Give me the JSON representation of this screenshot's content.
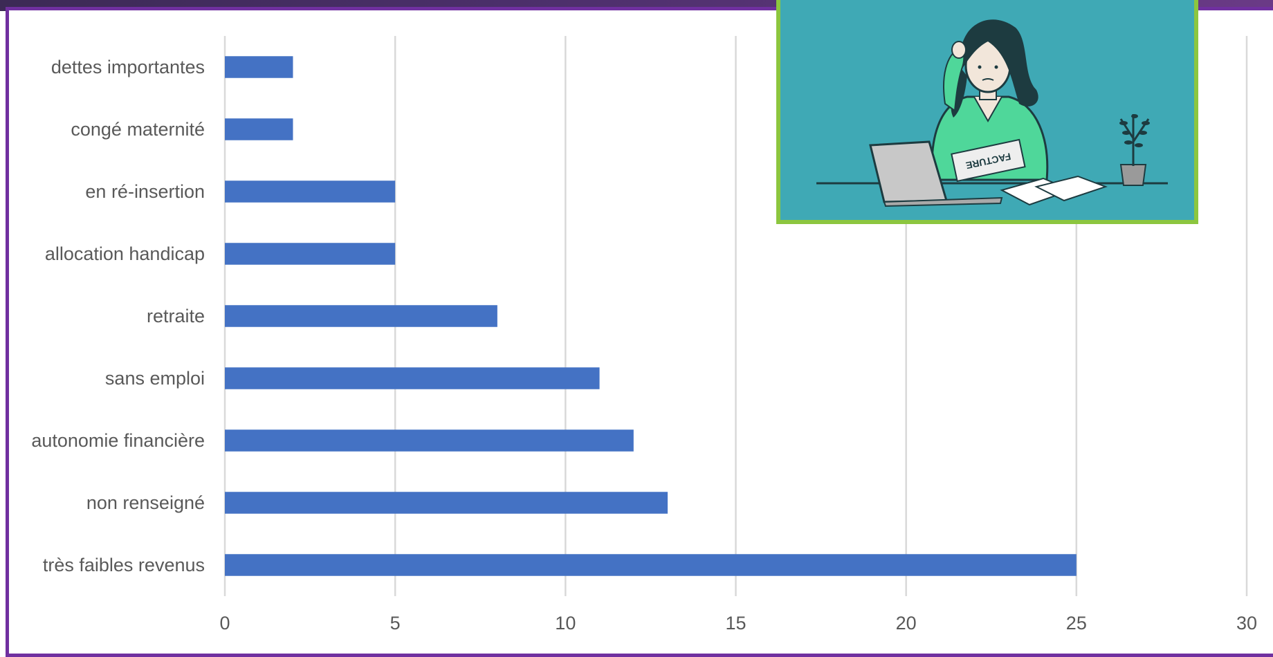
{
  "chart_data": {
    "type": "bar",
    "orientation": "horizontal",
    "categories": [
      "dettes importantes",
      "congé maternité",
      "en ré-insertion",
      "allocation handicap",
      "retraite",
      "sans emploi",
      "autonomie financière",
      "non renseigné",
      "très faibles revenus"
    ],
    "values": [
      2,
      2,
      5,
      5,
      8,
      11,
      12,
      13,
      25
    ],
    "xlim": [
      0,
      30
    ],
    "xticks": [
      "0",
      "5",
      "10",
      "15",
      "20",
      "25",
      "30"
    ],
    "grid": true,
    "bar_color": "#4472c4"
  },
  "illustration": {
    "document_label": "FACTURE",
    "background_color": "#3fa9b5",
    "border_color": "#8cc63f"
  },
  "colors": {
    "frame": "#7030a0",
    "top_band": "#4b2f6a"
  }
}
